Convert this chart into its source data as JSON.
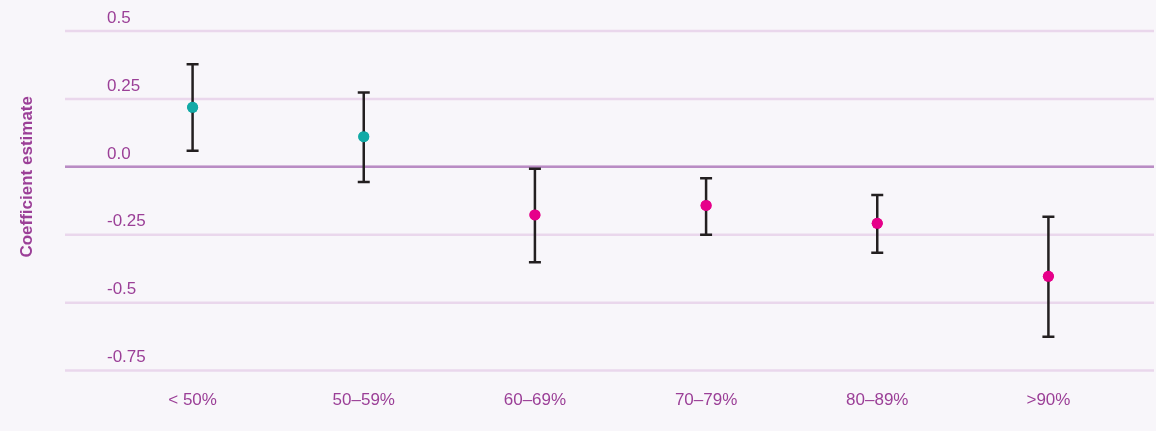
{
  "chart_data": {
    "type": "scatter",
    "ylabel": "Coefficient estimate",
    "categories": [
      "< 50%",
      "50–59%",
      "60–69%",
      "70–79%",
      "80–89%",
      ">90%"
    ],
    "values": [
      0.219,
      0.111,
      -0.177,
      -0.142,
      -0.208,
      -0.403
    ],
    "colors": [
      "#12aaa6",
      "#12aaa6",
      "#e6008a",
      "#e6008a",
      "#e6008a",
      "#e6008a"
    ],
    "errors": [
      [
        0.059,
        0.378
      ],
      [
        -0.056,
        0.274
      ],
      [
        -0.351,
        -0.007
      ],
      [
        -0.25,
        -0.042
      ],
      [
        -0.316,
        -0.104
      ],
      [
        -0.625,
        -0.184
      ]
    ],
    "ylim": [
      -0.75,
      0.5
    ],
    "yticks": [
      0.5,
      0.25,
      {
        "value": 0,
        "label": "0.0"
      },
      -0.25,
      -0.5,
      -0.75
    ],
    "ref_lines": [
      {
        "axis": "y",
        "value": 0,
        "color": "#b98cc4"
      }
    ],
    "grid": "y",
    "marker": "circle"
  }
}
